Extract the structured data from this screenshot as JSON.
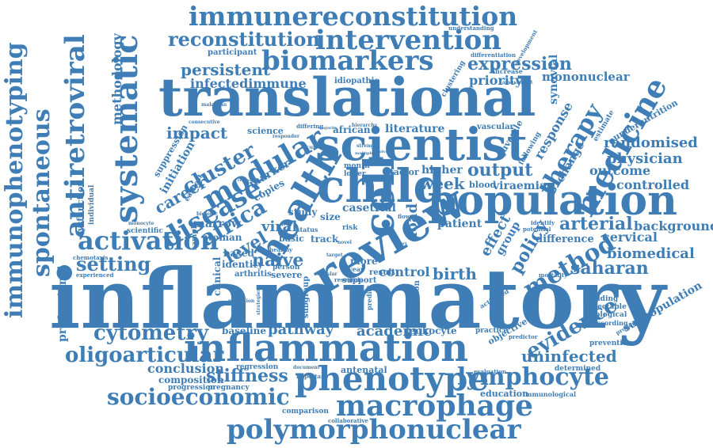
{
  "cloud": {
    "color": "#3e7db5",
    "words": {
      "inflammatory": "inflammatory",
      "translational": "translational",
      "population": "population",
      "inflammation": "inflammation",
      "scientist": "scientist",
      "review": "review",
      "child": "child",
      "health": "health",
      "immunereconstitution": "immunereconstitution",
      "intervention": "intervention",
      "biomarkers": "biomarkers",
      "reconstitution": "reconstitution",
      "phenotype": "phenotype",
      "macrophage": "macrophage",
      "polymorphonuclear": "polymorphonuclear",
      "socioeconomic": "socioeconomic",
      "lymphocyte": "lymphocyte",
      "oligoarticular": "oligoarticular",
      "cytometry": "cytometry",
      "activation": "activation",
      "immunophenotyping": "immunophenotyping",
      "spontaneous": "spontaneous",
      "antiretroviral": "antiretroviral",
      "systematic": "systematic",
      "modular": "modular",
      "disease": "disease",
      "cell": "cell",
      "medicine": "medicine",
      "therapy": "therapy",
      "method": "method",
      "saharan": "saharan",
      "evidence": "evidence",
      "uninfected": "uninfected",
      "stiffness": "stiffness",
      "expression": "expression",
      "persistent": "persistent",
      "infectedimmune": "infectedimmune",
      "cluster": "cluster",
      "impact": "impact",
      "africa": "africa",
      "naive": "naive",
      "week": "week",
      "output": "output",
      "randomised": "randomised",
      "physician": "physician",
      "outcome": "outcome",
      "controlled": "controlled",
      "arterial": "arterial",
      "background": "background",
      "cervical": "cervical",
      "biomedical": "biomedical",
      "setting": "setting",
      "conclusion": "conclusion",
      "composition": "composition",
      "pathway": "pathway",
      "academic": "academic",
      "birth": "birth",
      "control": "control",
      "policy": "policy",
      "viral": "viral",
      "level": "level",
      "career": "career",
      "methodology": "methodology",
      "priority": "priority",
      "mononuclear": "mononuclear",
      "synovial": "synovial",
      "response": "response",
      "change": "change",
      "patient": "patient",
      "higher": "higher",
      "blood": "blood",
      "viraemia": "viraemia",
      "difference": "difference",
      "effect": "effect",
      "group": "group",
      "load": "load",
      "casetrial": "casetrial",
      "marrow": "marrow",
      "woman": "woman",
      "based": "based",
      "identity": "identity",
      "clinical": "clinical",
      "severe": "severe",
      "basic": "basic",
      "track": "track",
      "more": "more",
      "result": "result",
      "professional": "professional",
      "baseline": "baseline",
      "regression": "regression",
      "progression": "progression",
      "pregnancy": "pregnancy",
      "antenatal": "antenatal",
      "education": "education",
      "immunological": "immunological",
      "comparison": "comparison",
      "collaborative": "collaborative",
      "leukocyte": "leukocyte",
      "determined": "determined",
      "prevention": "prevention",
      "subpopulation": "subpopulation",
      "building": "building",
      "detectable": "detectable",
      "virological": "virological",
      "according": "according",
      "proportion": "proportion",
      "participant": "participant",
      "idiopathic": "idiopathic",
      "differentiation": "differentiation",
      "increase": "increase",
      "clustering": "clustering",
      "understanding": "understanding",
      "development": "development",
      "assessment": "assessment",
      "science": "science",
      "literature": "literature",
      "african": "african",
      "vascular": "vascular",
      "juvenile": "juvenile",
      "undernutrition": "undernutrition",
      "estimate": "estimate",
      "suppression": "suppression",
      "initiation": "initiation",
      "dysfunction": "dysfunction",
      "individual": "individual",
      "scientific": "scientific",
      "chemotaxis": "chemotaxis",
      "experienced": "experienced",
      "arthritis": "arthritis",
      "study": "study",
      "size": "size",
      "month": "month",
      "lower": "lower",
      "factor": "factor",
      "marker": "marker",
      "copies": "copies",
      "consecutive": "consecutive",
      "malawian": "malawian",
      "subgroup": "subgroup",
      "support": "support",
      "predict": "predict",
      "extension": "extension",
      "practice": "practice",
      "objective": "objective",
      "predictor": "predictor",
      "mortality": "mortality",
      "potential": "potential",
      "identify": "identify",
      "activated": "activated",
      "evaluation": "evaluation",
      "research": "research",
      "person": "person",
      "healthy": "healthy",
      "year": "year",
      "risk": "risk",
      "status": "status",
      "biologic": "biologic",
      "important": "important",
      "document": "document",
      "migration": "migration",
      "strategies": "strategies",
      "earnest": "earnest",
      "monocyte": "monocyte",
      "sample": "sample",
      "retention": "retention",
      "differing": "differing",
      "responder": "responder",
      "hierarchy": "hierarchy",
      "majority": "majority",
      "recurrent": "recurrent",
      "strength": "strength",
      "multiple": "multiple",
      "involved": "involved",
      "cellular": "cellular",
      "novel": "novel",
      "target": "target",
      "flow": "flow",
      "effort": "effort",
      "following": "following"
    }
  }
}
